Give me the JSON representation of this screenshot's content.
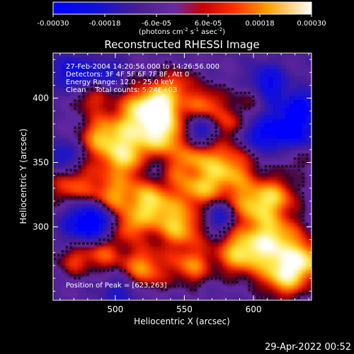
{
  "colorbar": {
    "tick_labels": [
      "-0.00030",
      "-0.00018",
      "-6.0e-05",
      "6.0e-05",
      "0.00018",
      "0.00030"
    ],
    "range": [
      -0.0003,
      0.0003
    ],
    "units_label": "(photons cm",
    "units_exp1": "-2",
    "units_mid1": " s",
    "units_exp2": "-1",
    "units_mid2": " asec",
    "units_exp3": "-2",
    "units_close": ")"
  },
  "chart_data": {
    "type": "heatmap",
    "title": "Reconstructed RHESSI Image",
    "xlabel": "Heliocentric X (arcsec)",
    "ylabel": "Heliocentric Y (arcsec)",
    "xlim": [
      455,
      642
    ],
    "ylim": [
      243,
      435
    ],
    "x_ticks": [
      500,
      550,
      600
    ],
    "y_ticks": [
      300,
      350,
      400
    ],
    "x_tick_labels": [
      "500",
      "550",
      "600"
    ],
    "y_tick_labels": [
      "300",
      "350",
      "400"
    ],
    "colormap": "rhessi-standard (blue-purple-red-orange-yellow-white)",
    "annotations": [
      "27-Feb-2004 14:20:56.000 to 14:26:56.000",
      "Detectors: 3F 4F 5F 6F 7F 8F, Att 0",
      "Energy Range: 12.0 - 25.0 keV",
      "Clean    Total counts: 5.24E+03"
    ],
    "peak_label": "Position of Peak = [623,263]",
    "peak_position": [
      623,
      263
    ],
    "grid": false
  },
  "footer": {
    "timestamp": "29-Apr-2022 00:52"
  }
}
